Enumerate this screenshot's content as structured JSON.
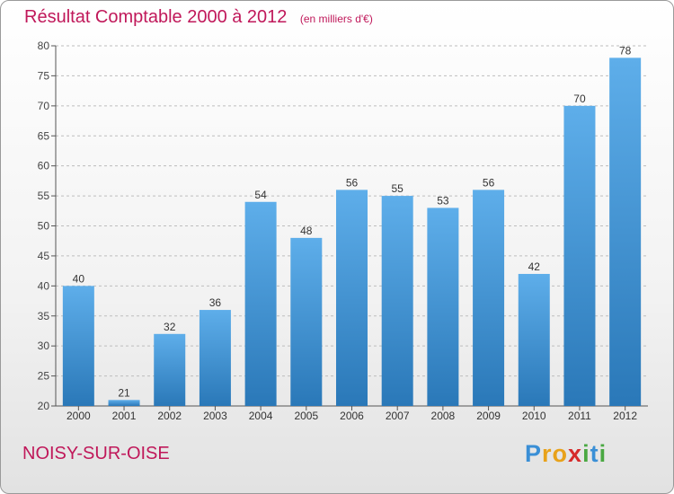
{
  "header": {
    "title": "Résultat Comptable 2000 à 2012",
    "subtitle": "(en milliers d'€)"
  },
  "footer": {
    "city": "NOISY-SUR-OISE",
    "logo_letters": [
      "P",
      "r",
      "o",
      "x",
      "i",
      "t",
      "i"
    ],
    "logo_colors": [
      "#3a8fd6",
      "#e8a21a",
      "#e8a21a",
      "#d62a2a",
      "#4aa842",
      "#3a8fd6",
      "#4aa842"
    ]
  },
  "colors": {
    "title": "#c0185a",
    "bar_light": "#5eaeea",
    "bar_dark": "#2a78b8",
    "grid": "#bdbdbd"
  },
  "chart_data": {
    "type": "bar",
    "categories": [
      "2000",
      "2001",
      "2002",
      "2003",
      "2004",
      "2005",
      "2006",
      "2007",
      "2008",
      "2009",
      "2010",
      "2011",
      "2012"
    ],
    "values": [
      40,
      21,
      32,
      36,
      54,
      48,
      56,
      55,
      53,
      56,
      42,
      70,
      78
    ],
    "yticks": [
      20,
      25,
      30,
      35,
      40,
      45,
      50,
      55,
      60,
      65,
      70,
      75,
      80
    ],
    "ylim": [
      20,
      80
    ],
    "grid": true
  }
}
